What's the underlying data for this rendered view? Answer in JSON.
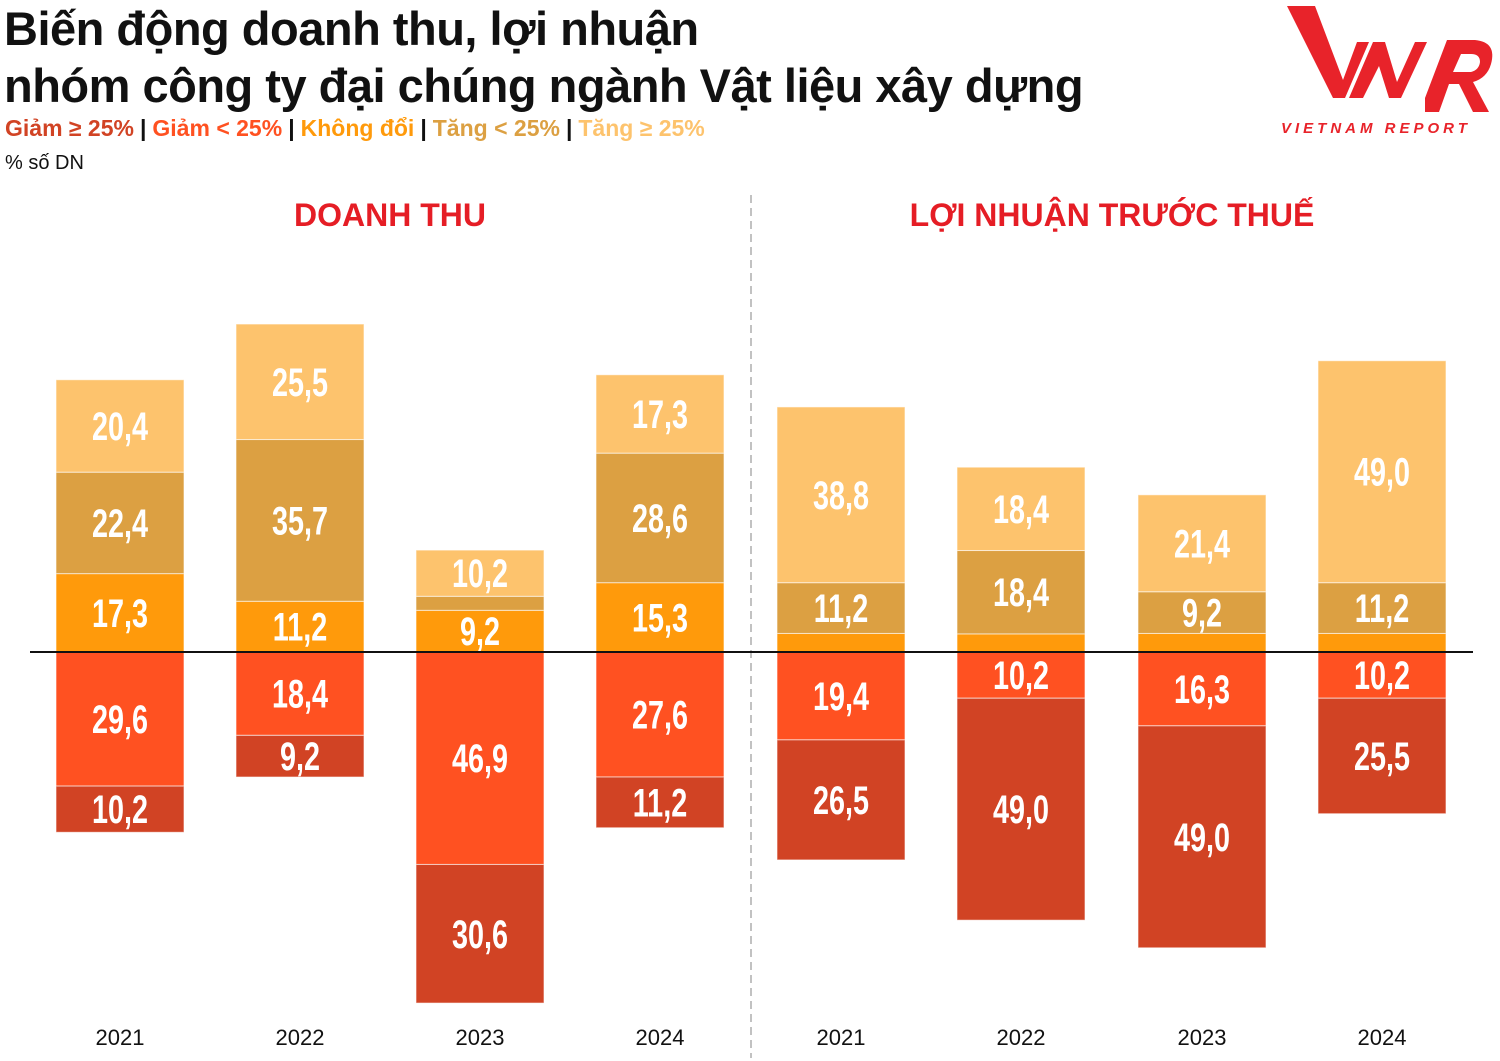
{
  "header": {
    "title_line1": "Biến động doanh thu, lợi nhuận",
    "title_line2": "nhóm công ty đại chúng ngành Vật liệu xây dựng",
    "unit": "% số DN",
    "logo_text": "VNR",
    "logo_subtext": "VIETNAM REPORT"
  },
  "chart_data": [
    {
      "type": "bar",
      "stacked": "diverging",
      "title": "DOANH THU",
      "categories": [
        "2021",
        "2022",
        "2023",
        "2024"
      ],
      "legend_placement": "top-left",
      "grid": false,
      "series": [
        {
          "name": "Giảm ≥ 25%",
          "color": "#d14324",
          "direction": "down",
          "values": [
            10.2,
            9.2,
            30.6,
            11.2
          ]
        },
        {
          "name": "Giảm < 25%",
          "color": "#ff5121",
          "direction": "down",
          "values": [
            29.6,
            18.4,
            46.9,
            27.6
          ]
        },
        {
          "name": "Không đổi",
          "color": "#ff9a0b",
          "direction": "up",
          "values": [
            17.3,
            11.2,
            9.2,
            15.3
          ]
        },
        {
          "name": "Tăng < 25%",
          "color": "#dca042",
          "direction": "up",
          "values": [
            22.4,
            35.7,
            3.1,
            28.6
          ]
        },
        {
          "name": "Tăng ≥ 25%",
          "color": "#fdc36d",
          "direction": "up",
          "values": [
            20.4,
            25.5,
            10.2,
            17.3
          ]
        }
      ]
    },
    {
      "type": "bar",
      "stacked": "diverging",
      "title": "LỢI NHUẬN TRƯỚC THUẾ",
      "categories": [
        "2021",
        "2022",
        "2023",
        "2024"
      ],
      "grid": false,
      "series": [
        {
          "name": "Giảm ≥ 25%",
          "color": "#d14324",
          "direction": "down",
          "values": [
            26.5,
            49.0,
            49.0,
            25.5
          ]
        },
        {
          "name": "Giảm < 25%",
          "color": "#ff5121",
          "direction": "down",
          "values": [
            19.4,
            10.2,
            16.3,
            10.2
          ]
        },
        {
          "name": "Không đổi",
          "color": "#ff9a0b",
          "direction": "up",
          "values": [
            4.1,
            4.0,
            4.1,
            4.1
          ]
        },
        {
          "name": "Tăng < 25%",
          "color": "#dca042",
          "direction": "up",
          "values": [
            11.2,
            18.4,
            9.2,
            11.2
          ]
        },
        {
          "name": "Tăng ≥ 25%",
          "color": "#fdc36d",
          "direction": "up",
          "values": [
            38.8,
            18.4,
            21.4,
            49.0
          ]
        }
      ]
    }
  ]
}
